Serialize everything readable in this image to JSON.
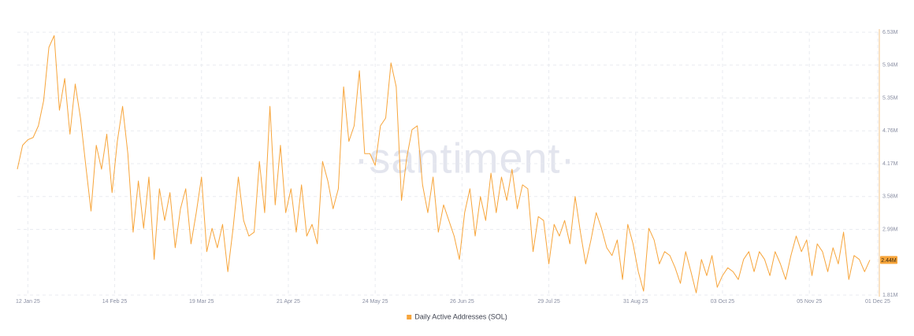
{
  "chart_data": {
    "type": "line",
    "watermark": "·santiment·",
    "last_value_label": "2.44M",
    "grid": true,
    "xlim": [
      "2025-01-08",
      "2025-12-01"
    ],
    "ylim": [
      1.81,
      6.53
    ],
    "yticks": [
      {
        "value": 1.81,
        "label": "1.81M"
      },
      {
        "value": 2.99,
        "label": "2.99M"
      },
      {
        "value": 3.58,
        "label": "3.58M"
      },
      {
        "value": 4.17,
        "label": "4.17M"
      },
      {
        "value": 4.76,
        "label": "4.76M"
      },
      {
        "value": 5.35,
        "label": "5.35M"
      },
      {
        "value": 5.94,
        "label": "5.94M"
      },
      {
        "value": 6.53,
        "label": "6.53M"
      }
    ],
    "xticks": [
      {
        "value": "2025-01-12",
        "label": "12 Jan 25"
      },
      {
        "value": "2025-02-14",
        "label": "14 Feb 25"
      },
      {
        "value": "2025-03-19",
        "label": "19 Mar 25"
      },
      {
        "value": "2025-04-21",
        "label": "21 Apr 25"
      },
      {
        "value": "2025-05-24",
        "label": "24 May 25"
      },
      {
        "value": "2025-06-26",
        "label": "26 Jun 25"
      },
      {
        "value": "2025-07-29",
        "label": "29 Jul 25"
      },
      {
        "value": "2025-08-31",
        "label": "31 Aug 25"
      },
      {
        "value": "2025-10-03",
        "label": "03 Oct 25"
      },
      {
        "value": "2025-11-05",
        "label": "05 Nov 25"
      },
      {
        "value": "2025-12-01",
        "label": "01 Dec 25"
      }
    ],
    "x": [
      "2025-01-08",
      "2025-01-10",
      "2025-01-12",
      "2025-01-14",
      "2025-01-16",
      "2025-01-18",
      "2025-01-20",
      "2025-01-22",
      "2025-01-24",
      "2025-01-26",
      "2025-01-28",
      "2025-01-30",
      "2025-02-01",
      "2025-02-03",
      "2025-02-05",
      "2025-02-07",
      "2025-02-09",
      "2025-02-11",
      "2025-02-13",
      "2025-02-15",
      "2025-02-17",
      "2025-02-19",
      "2025-02-21",
      "2025-02-23",
      "2025-02-25",
      "2025-02-27",
      "2025-03-01",
      "2025-03-03",
      "2025-03-05",
      "2025-03-07",
      "2025-03-09",
      "2025-03-11",
      "2025-03-13",
      "2025-03-15",
      "2025-03-17",
      "2025-03-19",
      "2025-03-21",
      "2025-03-23",
      "2025-03-25",
      "2025-03-27",
      "2025-03-29",
      "2025-03-31",
      "2025-04-02",
      "2025-04-04",
      "2025-04-06",
      "2025-04-08",
      "2025-04-10",
      "2025-04-12",
      "2025-04-14",
      "2025-04-16",
      "2025-04-18",
      "2025-04-20",
      "2025-04-22",
      "2025-04-24",
      "2025-04-26",
      "2025-04-28",
      "2025-04-30",
      "2025-05-02",
      "2025-05-04",
      "2025-05-06",
      "2025-05-08",
      "2025-05-10",
      "2025-05-12",
      "2025-05-14",
      "2025-05-16",
      "2025-05-18",
      "2025-05-20",
      "2025-05-22",
      "2025-05-24",
      "2025-05-26",
      "2025-05-28",
      "2025-05-30",
      "2025-06-01",
      "2025-06-03",
      "2025-06-05",
      "2025-06-07",
      "2025-06-09",
      "2025-06-11",
      "2025-06-13",
      "2025-06-15",
      "2025-06-17",
      "2025-06-19",
      "2025-06-21",
      "2025-06-23",
      "2025-06-25",
      "2025-06-27",
      "2025-06-29",
      "2025-07-01",
      "2025-07-03",
      "2025-07-05",
      "2025-07-07",
      "2025-07-09",
      "2025-07-11",
      "2025-07-13",
      "2025-07-15",
      "2025-07-17",
      "2025-07-19",
      "2025-07-21",
      "2025-07-23",
      "2025-07-25",
      "2025-07-27",
      "2025-07-29",
      "2025-07-31",
      "2025-08-02",
      "2025-08-04",
      "2025-08-06",
      "2025-08-08",
      "2025-08-10",
      "2025-08-12",
      "2025-08-14",
      "2025-08-16",
      "2025-08-18",
      "2025-08-20",
      "2025-08-22",
      "2025-08-24",
      "2025-08-26",
      "2025-08-28",
      "2025-08-30",
      "2025-09-01",
      "2025-09-03",
      "2025-09-05",
      "2025-09-07",
      "2025-09-09",
      "2025-09-11",
      "2025-09-13",
      "2025-09-15",
      "2025-09-17",
      "2025-09-19",
      "2025-09-21",
      "2025-09-23",
      "2025-09-25",
      "2025-09-27",
      "2025-09-29",
      "2025-10-01",
      "2025-10-03",
      "2025-10-05",
      "2025-10-07",
      "2025-10-09",
      "2025-10-11",
      "2025-10-13",
      "2025-10-15",
      "2025-10-17",
      "2025-10-19",
      "2025-10-21",
      "2025-10-23",
      "2025-10-25",
      "2025-10-27",
      "2025-10-29",
      "2025-10-31",
      "2025-11-02",
      "2025-11-04",
      "2025-11-06",
      "2025-11-08",
      "2025-11-10",
      "2025-11-12",
      "2025-11-14",
      "2025-11-16",
      "2025-11-18",
      "2025-11-20",
      "2025-11-22",
      "2025-11-24",
      "2025-11-26",
      "2025-11-28"
    ],
    "series": [
      {
        "name": "Daily Active Addresses (SOL)",
        "color": "#f7a53b",
        "values": [
          4.07,
          4.5,
          4.6,
          4.64,
          4.85,
          5.3,
          6.26,
          6.47,
          5.13,
          5.7,
          4.7,
          5.6,
          4.99,
          4.14,
          3.32,
          4.5,
          4.07,
          4.7,
          3.65,
          4.57,
          5.2,
          4.35,
          2.94,
          3.86,
          3.01,
          3.93,
          2.45,
          3.72,
          3.15,
          3.65,
          2.66,
          3.36,
          3.72,
          2.73,
          3.29,
          3.93,
          2.59,
          3.01,
          2.66,
          3.08,
          2.23,
          3.01,
          3.93,
          3.15,
          2.87,
          2.94,
          4.21,
          3.29,
          5.2,
          3.43,
          4.5,
          3.29,
          3.72,
          2.94,
          3.79,
          2.87,
          3.08,
          2.73,
          4.21,
          3.86,
          3.36,
          3.72,
          5.55,
          4.57,
          4.85,
          5.84,
          4.35,
          4.35,
          4.14,
          4.85,
          4.99,
          5.98,
          5.55,
          3.51,
          4.28,
          4.78,
          4.85,
          3.79,
          3.29,
          3.93,
          2.94,
          3.43,
          3.15,
          2.87,
          2.45,
          3.29,
          3.72,
          2.87,
          3.58,
          3.15,
          4.0,
          3.29,
          3.93,
          3.51,
          4.07,
          3.36,
          3.79,
          3.72,
          2.59,
          3.22,
          3.15,
          2.37,
          3.08,
          2.87,
          3.15,
          2.73,
          3.58,
          2.94,
          2.37,
          2.8,
          3.29,
          3.01,
          2.66,
          2.52,
          2.8,
          2.09,
          3.08,
          2.73,
          2.23,
          1.88,
          3.01,
          2.8,
          2.37,
          2.59,
          2.52,
          2.3,
          2.02,
          2.59,
          2.23,
          1.85,
          2.45,
          2.16,
          2.52,
          1.95,
          2.16,
          2.3,
          2.23,
          2.09,
          2.45,
          2.59,
          2.23,
          2.59,
          2.45,
          2.16,
          2.59,
          2.37,
          2.09,
          2.52,
          2.87,
          2.59,
          2.8,
          2.16,
          2.73,
          2.59,
          2.23,
          2.66,
          2.37,
          2.94,
          2.09,
          2.52,
          2.45,
          2.23,
          2.44
        ]
      }
    ]
  }
}
